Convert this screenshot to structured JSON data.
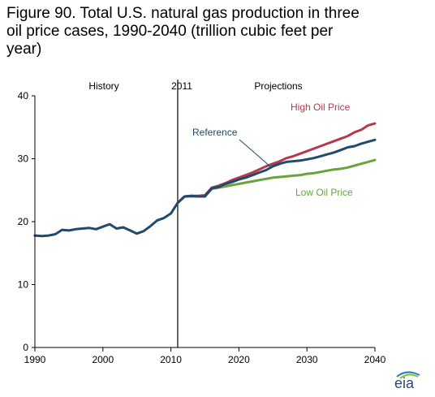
{
  "figure_title": "Figure 90. Total U.S. natural gas production in three\noil price cases, 1990-2040 (trillion cubic feet per\nyear)",
  "logo_text": "eia",
  "colors": {
    "reference": "#1f4a6e",
    "high": "#b5394b",
    "low": "#6aa23b",
    "axis": "#000000"
  },
  "chart_data": {
    "type": "line",
    "title": "Figure 90. Total U.S. natural gas production in three oil price cases, 1990-2040 (trillion cubic feet per year)",
    "xlabel": "",
    "ylabel": "",
    "xlim": [
      1990,
      2040
    ],
    "ylim": [
      0,
      40
    ],
    "x_ticks": [
      "1990",
      "2000",
      "2010",
      "2020",
      "2030",
      "2040"
    ],
    "y_ticks": [
      "0",
      "10",
      "20",
      "30",
      "40"
    ],
    "divider_year": 2011,
    "annotations": {
      "history": "History",
      "divider": "2011",
      "projections": "Projections"
    },
    "series": [
      {
        "name": "Reference",
        "color": "#1f4a6e",
        "x": [
          1990,
          1991,
          1992,
          1993,
          1994,
          1995,
          1996,
          1997,
          1998,
          1999,
          2000,
          2001,
          2002,
          2003,
          2004,
          2005,
          2006,
          2007,
          2008,
          2009,
          2010,
          2011,
          2012,
          2013,
          2014,
          2015,
          2016,
          2017,
          2018,
          2019,
          2020,
          2021,
          2022,
          2023,
          2024,
          2025,
          2026,
          2027,
          2028,
          2029,
          2030,
          2031,
          2032,
          2033,
          2034,
          2035,
          2036,
          2037,
          2038,
          2039,
          2040
        ],
        "values": [
          17.8,
          17.7,
          17.8,
          18.0,
          18.7,
          18.6,
          18.8,
          18.9,
          19.0,
          18.8,
          19.2,
          19.6,
          18.9,
          19.1,
          18.6,
          18.1,
          18.5,
          19.3,
          20.2,
          20.6,
          21.3,
          23.0,
          24.0,
          24.1,
          24.0,
          24.0,
          25.3,
          25.5,
          26.0,
          26.3,
          26.7,
          27.0,
          27.4,
          27.8,
          28.2,
          28.8,
          29.2,
          29.5,
          29.6,
          29.7,
          29.9,
          30.1,
          30.4,
          30.7,
          31.0,
          31.4,
          31.8,
          32.0,
          32.4,
          32.7,
          33.0
        ]
      },
      {
        "name": "High Oil Price",
        "color": "#b5394b",
        "x": [
          2011,
          2012,
          2013,
          2014,
          2015,
          2016,
          2017,
          2018,
          2019,
          2020,
          2021,
          2022,
          2023,
          2024,
          2025,
          2026,
          2027,
          2028,
          2029,
          2030,
          2031,
          2032,
          2033,
          2034,
          2035,
          2036,
          2037,
          2038,
          2039,
          2040
        ],
        "values": [
          23.0,
          24.0,
          24.1,
          24.1,
          24.2,
          25.4,
          25.7,
          26.1,
          26.6,
          27.0,
          27.4,
          27.8,
          28.3,
          28.8,
          29.2,
          29.6,
          30.1,
          30.4,
          30.8,
          31.2,
          31.6,
          32.0,
          32.4,
          32.8,
          33.2,
          33.6,
          34.2,
          34.6,
          35.3,
          35.6
        ]
      },
      {
        "name": "Low Oil Price",
        "color": "#6aa23b",
        "x": [
          2011,
          2012,
          2013,
          2014,
          2015,
          2016,
          2017,
          2018,
          2019,
          2020,
          2021,
          2022,
          2023,
          2024,
          2025,
          2026,
          2027,
          2028,
          2029,
          2030,
          2031,
          2032,
          2033,
          2034,
          2035,
          2036,
          2037,
          2038,
          2039,
          2040
        ],
        "values": [
          23.0,
          24.0,
          24.0,
          24.0,
          24.0,
          25.2,
          25.4,
          25.6,
          25.8,
          26.0,
          26.2,
          26.4,
          26.6,
          26.8,
          27.0,
          27.1,
          27.2,
          27.3,
          27.4,
          27.6,
          27.7,
          27.9,
          28.1,
          28.3,
          28.4,
          28.6,
          28.9,
          29.2,
          29.5,
          29.8
        ]
      }
    ]
  }
}
